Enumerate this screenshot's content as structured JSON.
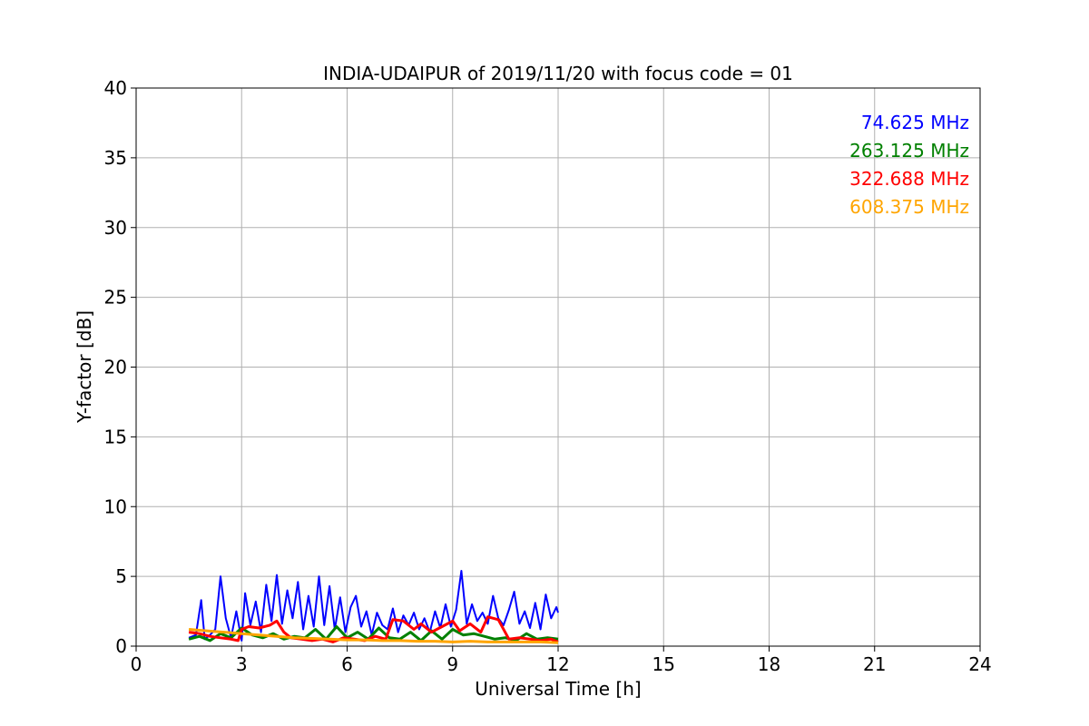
{
  "chart_data": {
    "type": "line",
    "title": "INDIA-UDAIPUR of 2019/11/20 with focus code = 01",
    "xlabel": "Universal Time [h]",
    "ylabel": "Y-factor [dB]",
    "xlim": [
      0,
      24
    ],
    "ylim": [
      0,
      40
    ],
    "xticks": [
      "0",
      "3",
      "6",
      "9",
      "12",
      "15",
      "18",
      "21",
      "24"
    ],
    "yticks": [
      "0",
      "5",
      "10",
      "15",
      "20",
      "25",
      "30",
      "35",
      "40"
    ],
    "grid": true,
    "legend_position": "top-right",
    "series": [
      {
        "name": "74.625 MHz",
        "color": "#0000ff",
        "x": [
          1.5,
          1.7,
          1.85,
          1.95,
          2.1,
          2.25,
          2.4,
          2.55,
          2.7,
          2.85,
          3.0,
          3.1,
          3.25,
          3.4,
          3.55,
          3.7,
          3.85,
          4.0,
          4.15,
          4.3,
          4.45,
          4.6,
          4.75,
          4.9,
          5.05,
          5.2,
          5.35,
          5.5,
          5.65,
          5.8,
          5.95,
          6.1,
          6.25,
          6.4,
          6.55,
          6.7,
          6.85,
          7.0,
          7.15,
          7.3,
          7.45,
          7.6,
          7.75,
          7.9,
          8.05,
          8.2,
          8.35,
          8.5,
          8.65,
          8.8,
          8.95,
          9.1,
          9.25,
          9.4,
          9.55,
          9.7,
          9.85,
          10.0,
          10.15,
          10.3,
          10.45,
          10.6,
          10.75,
          10.9,
          11.05,
          11.2,
          11.35,
          11.5,
          11.65,
          11.8,
          11.95,
          12.0
        ],
        "y": [
          0.6,
          0.8,
          3.3,
          0.5,
          0.8,
          1.2,
          5.0,
          2.0,
          0.6,
          2.5,
          0.4,
          3.8,
          1.5,
          3.2,
          1.0,
          4.4,
          1.8,
          5.1,
          1.6,
          4.0,
          2.0,
          4.6,
          1.2,
          3.6,
          1.4,
          5.0,
          1.5,
          4.3,
          1.2,
          3.5,
          1.0,
          2.8,
          3.6,
          1.4,
          2.5,
          0.8,
          2.4,
          1.5,
          1.2,
          2.7,
          1.0,
          2.2,
          1.5,
          2.4,
          1.2,
          2.0,
          1.0,
          2.5,
          1.3,
          3.0,
          1.4,
          2.6,
          5.4,
          1.6,
          3.0,
          1.8,
          2.4,
          1.6,
          3.6,
          2.0,
          1.5,
          2.6,
          3.9,
          1.6,
          2.5,
          1.3,
          3.1,
          1.2,
          3.7,
          2.0,
          2.8,
          2.4
        ]
      },
      {
        "name": "263.125 MHz",
        "color": "#008000",
        "x": [
          1.5,
          1.8,
          2.1,
          2.4,
          2.7,
          3.0,
          3.3,
          3.6,
          3.9,
          4.2,
          4.5,
          4.8,
          5.1,
          5.4,
          5.7,
          6.0,
          6.3,
          6.6,
          6.9,
          7.2,
          7.5,
          7.8,
          8.1,
          8.4,
          8.7,
          9.0,
          9.3,
          9.6,
          9.9,
          10.2,
          10.5,
          10.8,
          11.1,
          11.4,
          11.7,
          12.0
        ],
        "y": [
          0.5,
          0.7,
          0.4,
          0.9,
          0.6,
          1.3,
          0.8,
          0.6,
          0.9,
          0.5,
          0.7,
          0.6,
          1.2,
          0.5,
          1.4,
          0.6,
          1.0,
          0.5,
          1.3,
          0.6,
          0.5,
          1.0,
          0.4,
          1.1,
          0.5,
          1.2,
          0.8,
          0.9,
          0.7,
          0.5,
          0.6,
          0.4,
          0.9,
          0.5,
          0.6,
          0.5
        ]
      },
      {
        "name": "322.688 MHz",
        "color": "#ff0000",
        "x": [
          1.5,
          1.8,
          2.1,
          2.4,
          2.7,
          2.9,
          3.0,
          3.2,
          3.5,
          3.8,
          4.0,
          4.2,
          4.4,
          4.7,
          5.0,
          5.3,
          5.6,
          5.9,
          6.2,
          6.5,
          6.8,
          7.1,
          7.3,
          7.6,
          7.9,
          8.1,
          8.4,
          8.7,
          9.0,
          9.2,
          9.5,
          9.8,
          10.0,
          10.3,
          10.6,
          10.9,
          11.2,
          11.5,
          11.8,
          12.0
        ],
        "y": [
          1.0,
          0.9,
          0.7,
          0.6,
          0.5,
          0.4,
          1.2,
          1.4,
          1.3,
          1.5,
          1.8,
          1.0,
          0.6,
          0.5,
          0.4,
          0.5,
          0.3,
          0.6,
          0.5,
          0.4,
          0.7,
          0.5,
          1.9,
          1.8,
          1.2,
          1.6,
          1.0,
          1.4,
          1.8,
          1.1,
          1.6,
          1.0,
          2.1,
          1.9,
          0.5,
          0.6,
          0.5,
          0.4,
          0.5,
          0.3
        ]
      },
      {
        "name": "608.375 MHz",
        "color": "#ffa500",
        "x": [
          1.5,
          2.0,
          2.5,
          3.0,
          3.5,
          4.0,
          4.5,
          5.0,
          5.5,
          6.0,
          6.5,
          7.0,
          7.5,
          8.0,
          8.5,
          9.0,
          9.5,
          10.0,
          10.5,
          11.0,
          11.5,
          12.0
        ],
        "y": [
          1.2,
          1.1,
          1.0,
          0.9,
          0.8,
          0.7,
          0.6,
          0.55,
          0.5,
          0.45,
          0.45,
          0.4,
          0.4,
          0.35,
          0.35,
          0.3,
          0.35,
          0.3,
          0.3,
          0.3,
          0.3,
          0.25
        ]
      }
    ]
  }
}
